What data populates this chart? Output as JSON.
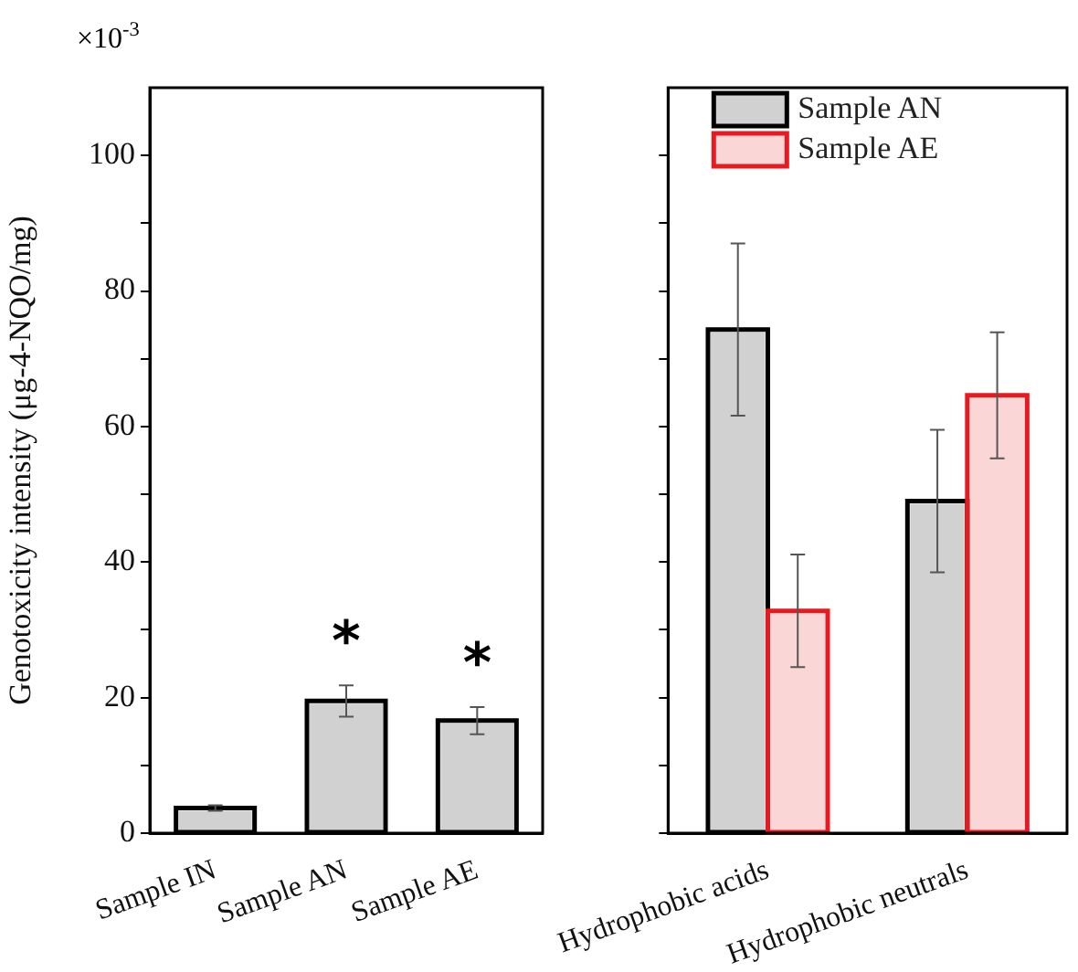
{
  "chart_data": [
    {
      "type": "bar",
      "ylabel": "Genotoxicity intensity (μg-4-NQO/mg)",
      "categories": [
        "Sample IN",
        "Sample AN",
        "Sample AE"
      ],
      "series": [
        {
          "color": "#000000",
          "values": [
            3.7,
            19.5,
            16.6
          ],
          "errors": [
            0.4,
            2.3,
            2.0
          ],
          "value_labels": [
            null,
            "*",
            "*"
          ]
        }
      ],
      "ylim": [
        0,
        110
      ],
      "yticks": [
        0,
        {
          "value": 10,
          "label": null
        },
        20,
        {
          "value": 30,
          "label": null
        },
        40,
        {
          "value": 50,
          "label": null
        },
        60,
        {
          "value": 70,
          "label": null
        },
        80,
        {
          "value": 90,
          "label": null
        },
        100
      ],
      "annotations": [
        "×10$^{-3}$"
      ]
    },
    {
      "type": "bar",
      "categories": [
        "Hydrophobic acids",
        "Hydrophobic neutrals"
      ],
      "series": [
        {
          "name": "Sample AN",
          "color": "#000000",
          "values": [
            74.3,
            49.0
          ],
          "errors": [
            12.7,
            10.5
          ]
        },
        {
          "name": "Sample AE",
          "color": "#e8191f",
          "values": [
            32.8,
            64.6
          ],
          "errors": [
            8.3,
            9.3
          ]
        }
      ],
      "ylim": [
        0,
        110
      ],
      "yticks": [
        0,
        {
          "value": 10,
          "label": null
        },
        20,
        {
          "value": 30,
          "label": null
        },
        40,
        {
          "value": 50,
          "label": null
        },
        60,
        {
          "value": 70,
          "label": null
        },
        80,
        {
          "value": 90,
          "label": null
        },
        100
      ],
      "tick_labels": "x",
      "legend": "top left"
    }
  ]
}
